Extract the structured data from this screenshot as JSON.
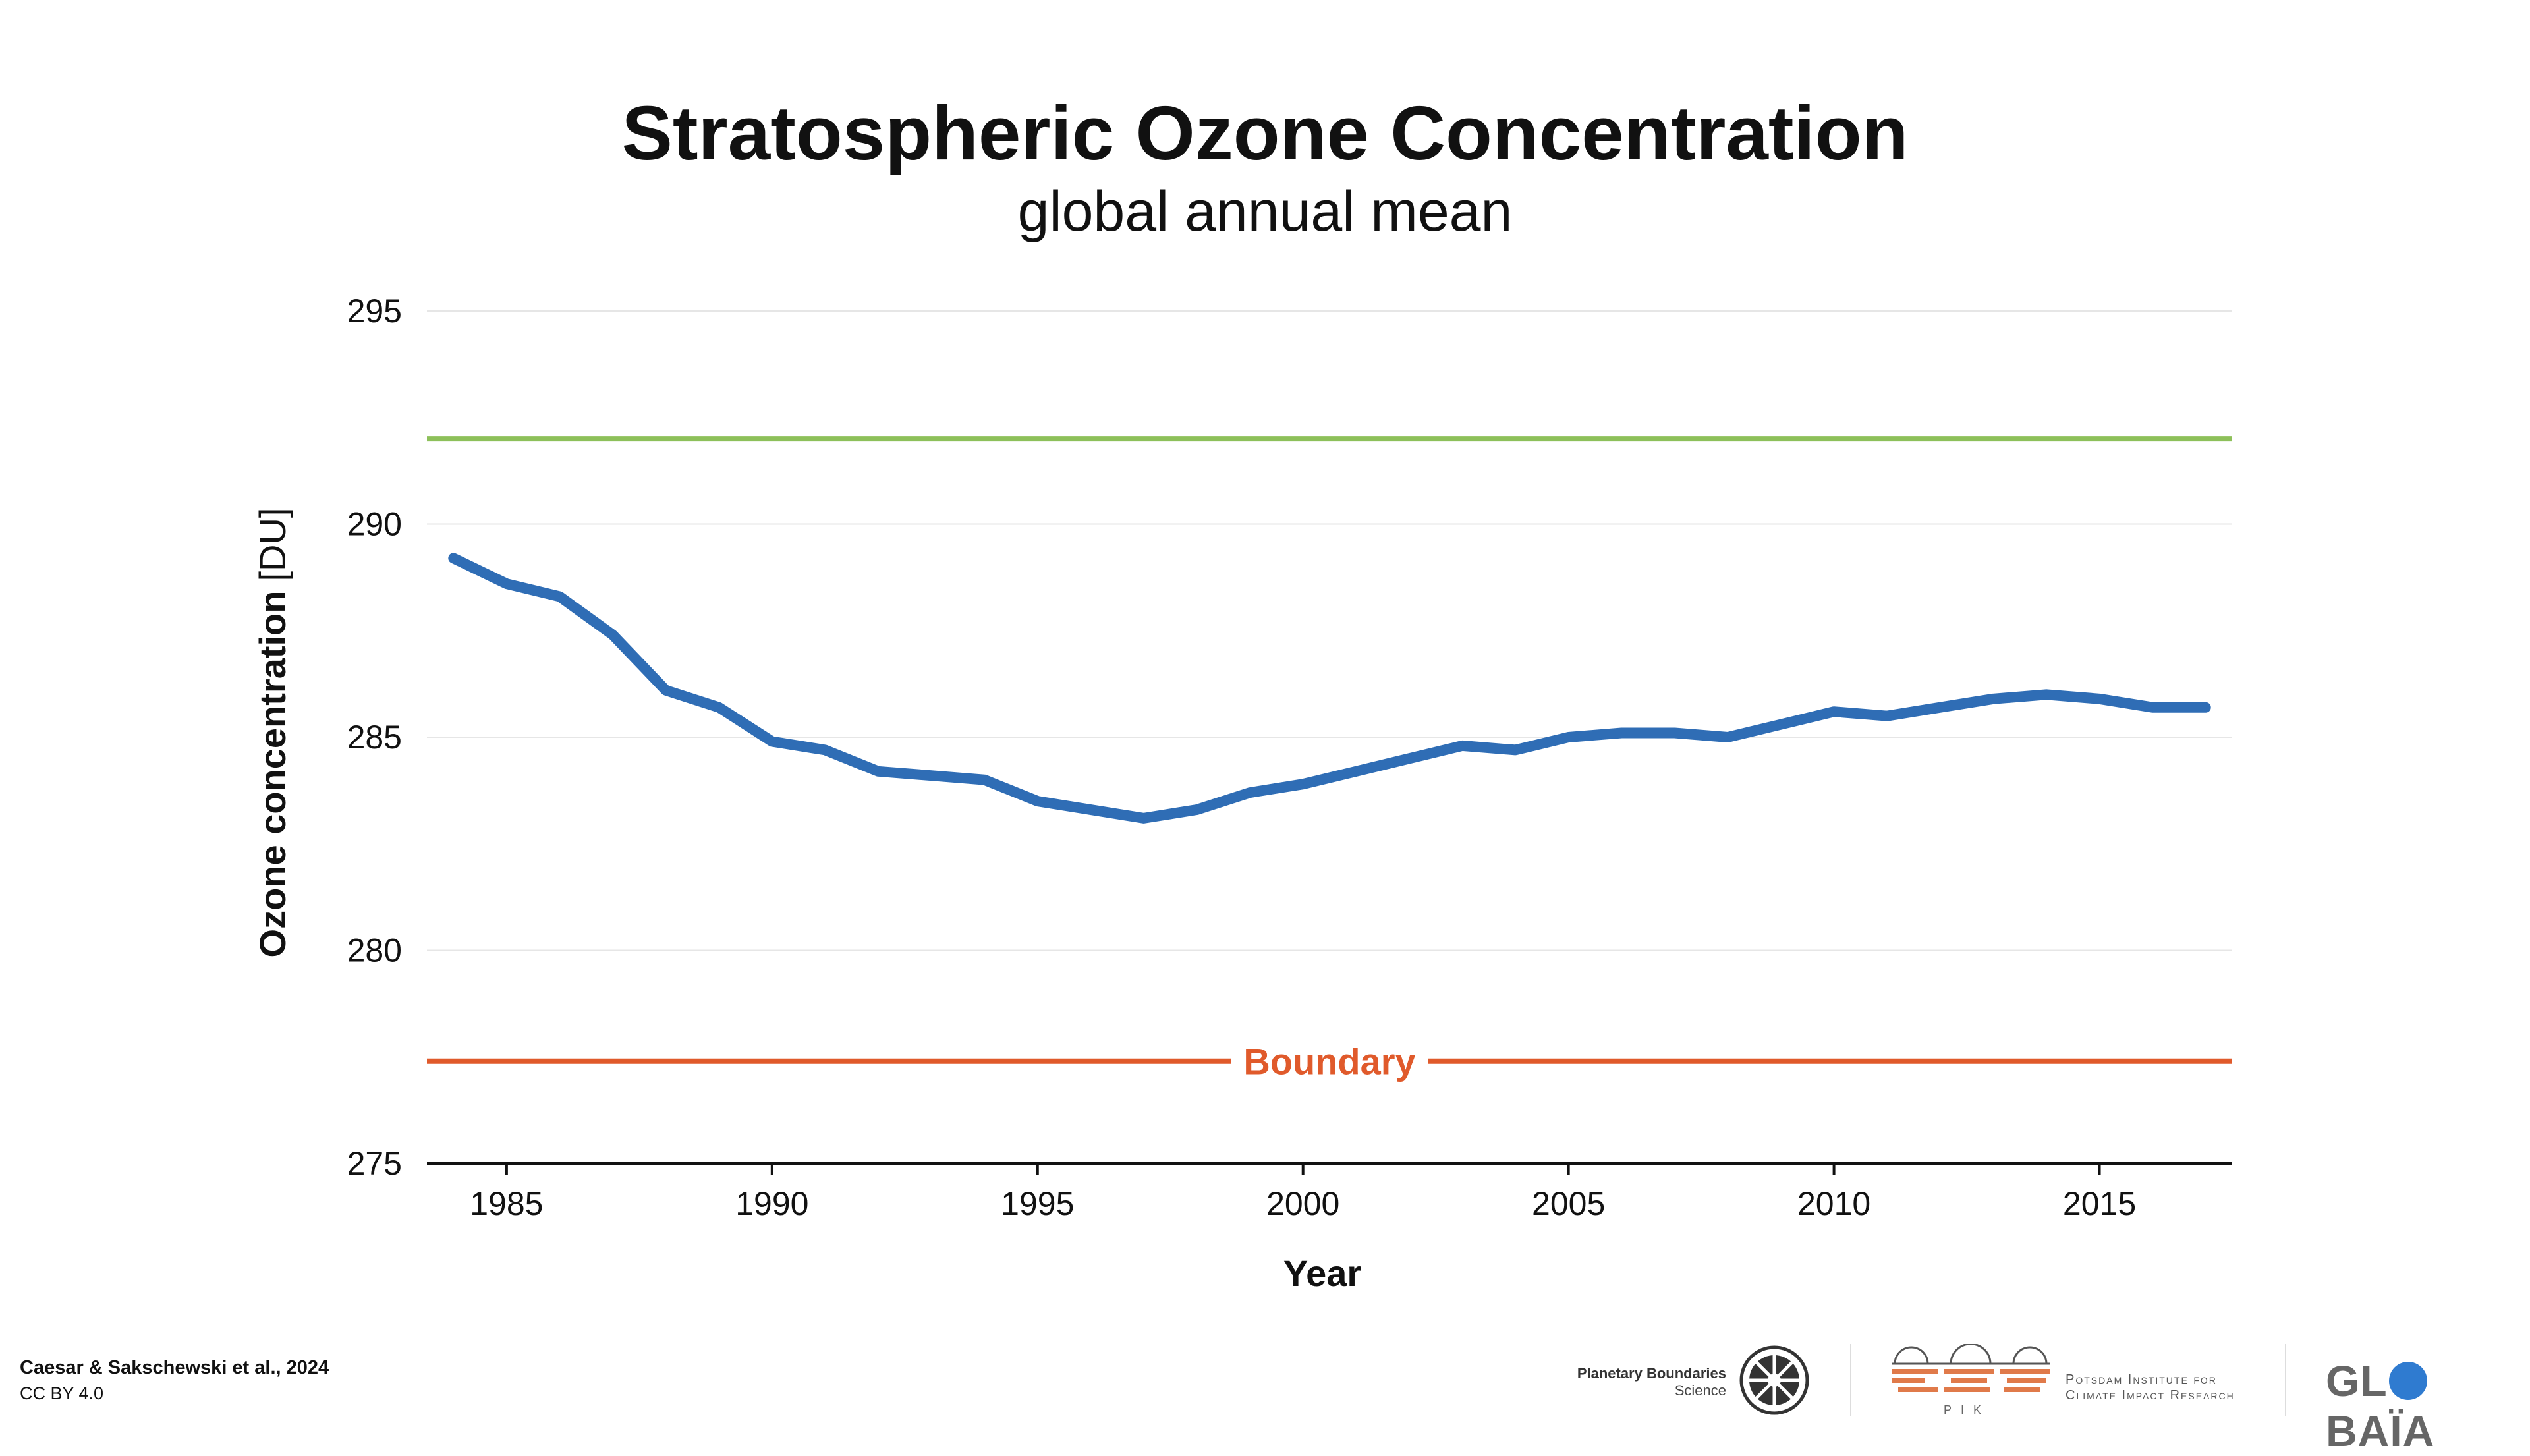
{
  "chart_data": {
    "type": "line",
    "title": "Stratospheric Ozone Concentration",
    "subtitle": "global annual mean",
    "xlabel": "Year",
    "ylabel_bold": "Ozone concentration",
    "ylabel_unit": "[DU]",
    "xlim": [
      1983.5,
      2017.5
    ],
    "ylim": [
      275,
      295
    ],
    "x_ticks": [
      1985,
      1990,
      1995,
      2000,
      2005,
      2010,
      2015
    ],
    "y_ticks": [
      275,
      280,
      285,
      290,
      295
    ],
    "grid": true,
    "series": [
      {
        "color": "#2f6db5",
        "x": [
          1984,
          1985,
          1986,
          1987,
          1988,
          1989,
          1990,
          1991,
          1992,
          1993,
          1994,
          1995,
          1996,
          1997,
          1998,
          1999,
          2000,
          2001,
          2002,
          2003,
          2004,
          2005,
          2006,
          2007,
          2008,
          2009,
          2010,
          2011,
          2012,
          2013,
          2014,
          2015,
          2016,
          2017
        ],
        "values": [
          289.2,
          288.6,
          288.3,
          287.4,
          286.1,
          285.7,
          284.9,
          284.7,
          284.2,
          284.1,
          284.0,
          283.5,
          283.3,
          283.1,
          283.3,
          283.7,
          283.9,
          284.2,
          284.5,
          284.8,
          284.7,
          285.0,
          285.1,
          285.1,
          285.0,
          285.3,
          285.6,
          285.5,
          285.7,
          285.9,
          286.0,
          285.9,
          285.7,
          285.7
        ]
      }
    ],
    "reference_lines": [
      {
        "value": 292.0,
        "color": "#8dc05a",
        "label": ""
      },
      {
        "value": 277.4,
        "color": "#e05a2b",
        "label": "Boundary"
      }
    ]
  },
  "footer": {
    "citation": "Caesar & Sakschewski et al., 2024",
    "license": "CC BY 4.0",
    "pbs_line1": "Planetary Boundaries",
    "pbs_line2": "Science",
    "pik_line1": "Potsdam Institute for",
    "pik_line2": "Climate Impact Research",
    "pik_short": "PIK",
    "globaia_pre": "GL",
    "globaia_post": "BAÏA"
  },
  "colors": {
    "series_line": "#2f6db5",
    "safe_line": "#8dc05a",
    "boundary": "#e05a2b"
  }
}
